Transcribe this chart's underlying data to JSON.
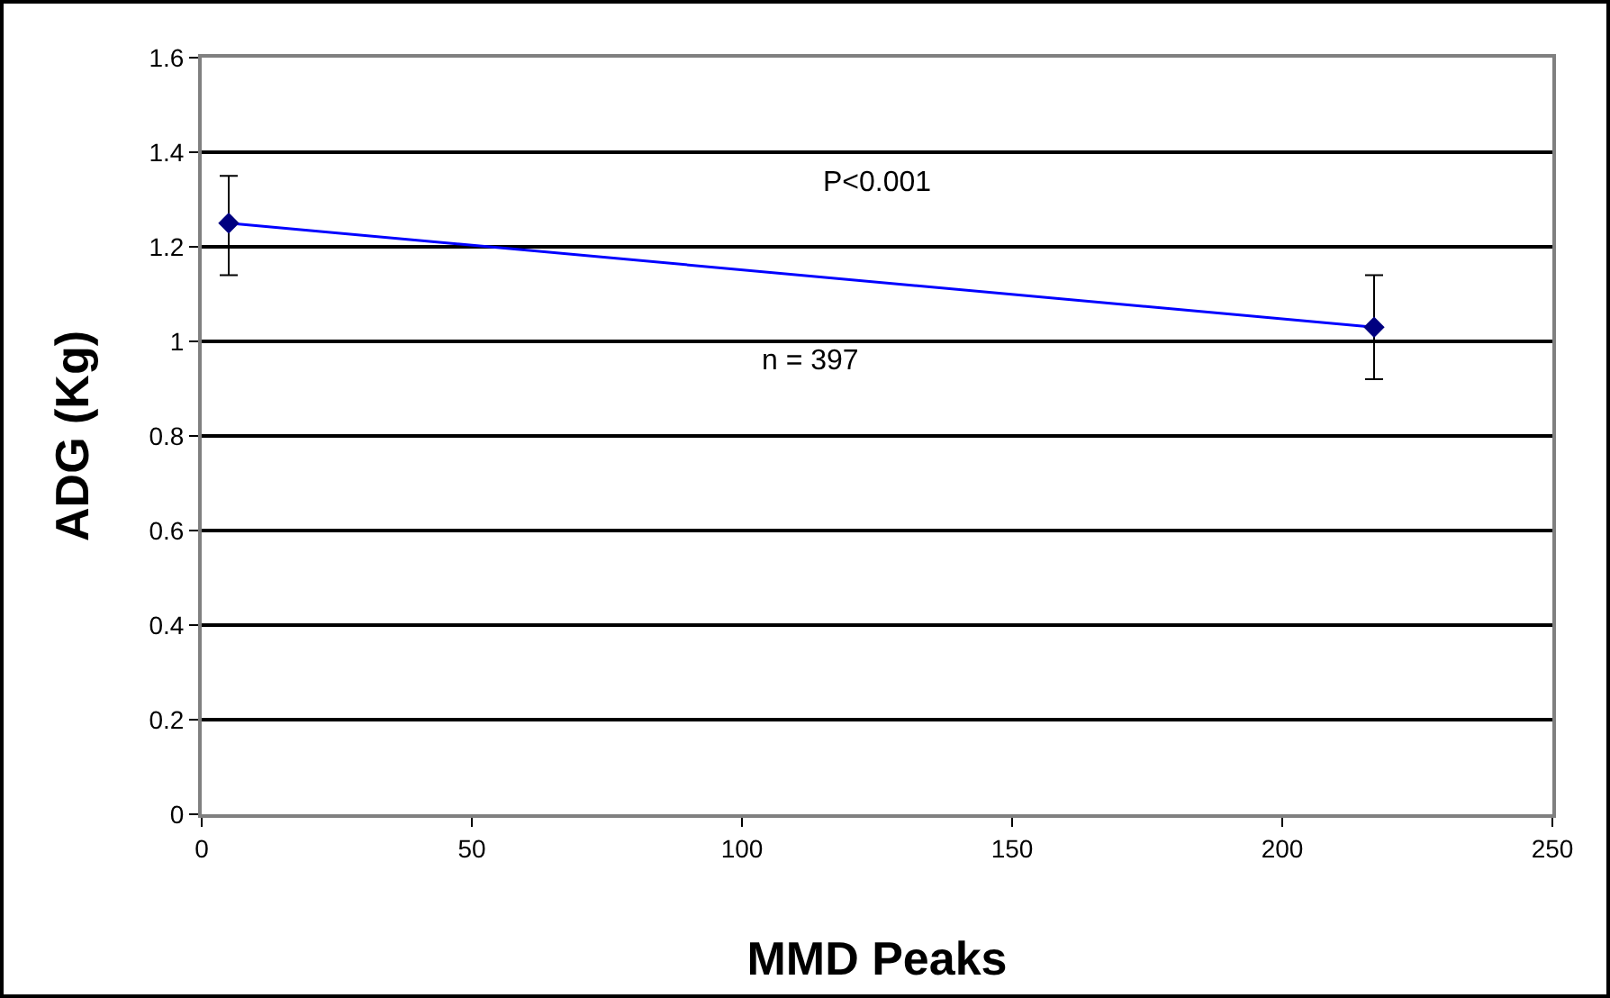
{
  "chart_data": {
    "type": "line",
    "xlabel": "MMD Peaks",
    "ylabel": "ADG (Kg)",
    "x": [
      5,
      217
    ],
    "series": [
      {
        "color": "#0000ff",
        "values": [
          1.25,
          1.03
        ],
        "errors": [
          [
            1.14,
            1.35
          ],
          [
            0.92,
            1.14
          ]
        ]
      }
    ],
    "xlim": [
      0,
      250
    ],
    "xticks": [
      0,
      50,
      100,
      150,
      200,
      250
    ],
    "ylim": [
      0,
      1.6
    ],
    "yticks": [
      0,
      0.2,
      0.4,
      0.6,
      0.8,
      1,
      1.2,
      1.4,
      1.6
    ],
    "grid": "y",
    "marker": "diamond",
    "line_style": "solid",
    "annotations": [
      "P<0.001",
      "n = 397"
    ]
  }
}
